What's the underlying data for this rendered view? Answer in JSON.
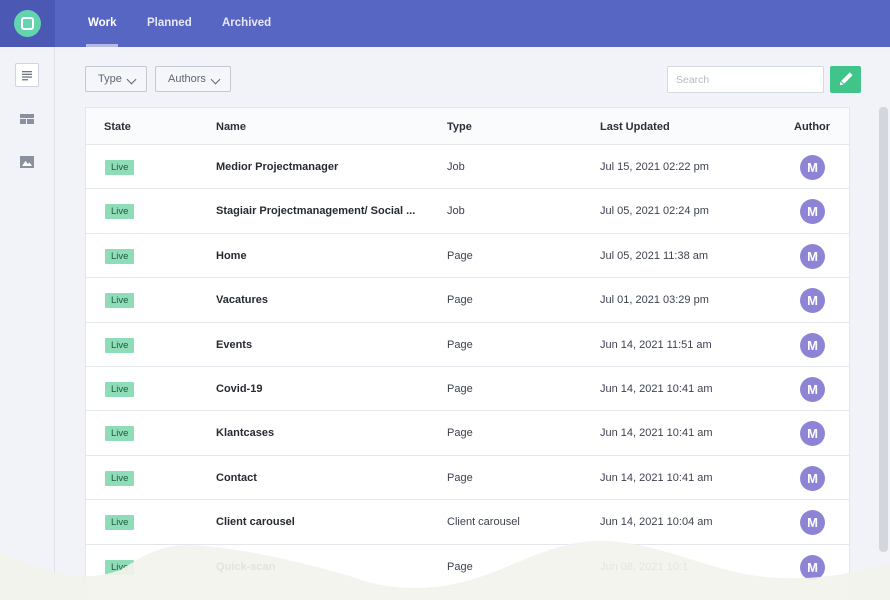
{
  "tabs": [
    {
      "label": "Work"
    },
    {
      "label": "Planned"
    },
    {
      "label": "Archived"
    }
  ],
  "filters": {
    "type_label": "Type",
    "authors_label": "Authors"
  },
  "search": {
    "placeholder": "Search"
  },
  "table": {
    "headers": {
      "state": "State",
      "name": "Name",
      "type": "Type",
      "updated": "Last Updated",
      "author": "Author"
    },
    "rows": [
      {
        "state": "Live",
        "name": "Medior Projectmanager",
        "type": "Job",
        "updated": "Jul 15, 2021 02:22 pm",
        "author": "M"
      },
      {
        "state": "Live",
        "name": "Stagiair Projectmanagement/ Social ...",
        "type": "Job",
        "updated": "Jul 05, 2021 02:24 pm",
        "author": "M"
      },
      {
        "state": "Live",
        "name": "Home",
        "type": "Page",
        "updated": "Jul 05, 2021 11:38 am",
        "author": "M"
      },
      {
        "state": "Live",
        "name": "Vacatures",
        "type": "Page",
        "updated": "Jul 01, 2021 03:29 pm",
        "author": "M"
      },
      {
        "state": "Live",
        "name": "Events",
        "type": "Page",
        "updated": "Jun 14, 2021 11:51 am",
        "author": "M"
      },
      {
        "state": "Live",
        "name": "Covid-19",
        "type": "Page",
        "updated": "Jun 14, 2021 10:41 am",
        "author": "M"
      },
      {
        "state": "Live",
        "name": "Klantcases",
        "type": "Page",
        "updated": "Jun 14, 2021 10:41 am",
        "author": "M"
      },
      {
        "state": "Live",
        "name": "Contact",
        "type": "Page",
        "updated": "Jun 14, 2021 10:41 am",
        "author": "M"
      },
      {
        "state": "Live",
        "name": "Client carousel",
        "type": "Client carousel",
        "updated": "Jun 14, 2021 10:04 am",
        "author": "M"
      },
      {
        "state": "Live",
        "name": "Quick-scan",
        "type": "Page",
        "updated": "Jun 08, 2021 10:1",
        "author": "M"
      }
    ]
  },
  "sidebar": {
    "icons": [
      "document-icon",
      "layout-icon",
      "image-icon"
    ]
  },
  "colors": {
    "topbar": "#5766c3",
    "accent_green": "#41c48a",
    "live_badge": "#8fdcb8",
    "avatar": "#8e84d6",
    "logo": "#64d3b0"
  }
}
